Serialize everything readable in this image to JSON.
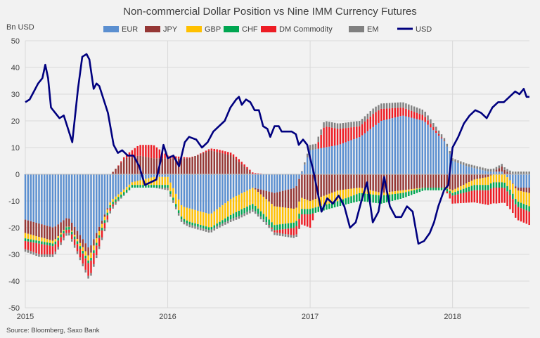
{
  "chart_data": {
    "type": "bar",
    "subtype": "stacked bar with line overlay",
    "title": "Non-commercial Dollar Position vs Nine IMM Currency Futures",
    "ylabel": "Bn USD",
    "ylim": [
      -50,
      50
    ],
    "yticks": [
      -50,
      -40,
      -30,
      -20,
      -10,
      0,
      10,
      20,
      30,
      40,
      50
    ],
    "x_start": 2015.0,
    "x_end": 2018.54,
    "xticks": [
      {
        "value": 2015,
        "label": "2015"
      },
      {
        "value": 2016,
        "label": "2016"
      },
      {
        "value": 2017,
        "label": "2017"
      },
      {
        "value": 2018,
        "label": "2018"
      }
    ],
    "source": "Source: Bloomberg, Saxo Bank",
    "weeks_estimated_from_keypoints": true,
    "series": [
      {
        "name": "EUR",
        "color": "#5b8fd0",
        "kind": "bar",
        "keypoints": [
          [
            2015.0,
            -17
          ],
          [
            2015.2,
            -20
          ],
          [
            2015.3,
            -16
          ],
          [
            2015.45,
            -28
          ],
          [
            2015.6,
            -10
          ],
          [
            2015.75,
            -3
          ],
          [
            2015.9,
            -1
          ],
          [
            2016.0,
            -1
          ],
          [
            2016.1,
            -12
          ],
          [
            2016.3,
            -15
          ],
          [
            2016.45,
            -9
          ],
          [
            2016.6,
            -5
          ],
          [
            2016.75,
            -7
          ],
          [
            2016.9,
            -5
          ],
          [
            2017.0,
            9
          ],
          [
            2017.2,
            11
          ],
          [
            2017.35,
            14
          ],
          [
            2017.5,
            20
          ],
          [
            2017.65,
            22
          ],
          [
            2017.8,
            20
          ],
          [
            2017.95,
            12
          ],
          [
            2018.0,
            5
          ],
          [
            2018.1,
            3
          ],
          [
            2018.25,
            1
          ],
          [
            2018.35,
            1
          ],
          [
            2018.45,
            -5
          ],
          [
            2018.54,
            -5
          ]
        ]
      },
      {
        "name": "JPY",
        "color": "#953735",
        "kind": "bar",
        "keypoints": [
          [
            2015.0,
            -5
          ],
          [
            2015.2,
            -5
          ],
          [
            2015.3,
            -3
          ],
          [
            2015.45,
            -3
          ],
          [
            2015.6,
            0
          ],
          [
            2015.7,
            6
          ],
          [
            2015.8,
            7
          ],
          [
            2015.9,
            6
          ],
          [
            2016.0,
            6
          ],
          [
            2016.15,
            6
          ],
          [
            2016.3,
            9
          ],
          [
            2016.45,
            7
          ],
          [
            2016.6,
            0
          ],
          [
            2016.75,
            -5
          ],
          [
            2016.9,
            -8
          ],
          [
            2017.0,
            -10
          ],
          [
            2017.2,
            -6
          ],
          [
            2017.35,
            -5
          ],
          [
            2017.5,
            -7
          ],
          [
            2017.65,
            -6
          ],
          [
            2017.8,
            -5
          ],
          [
            2017.95,
            -5
          ],
          [
            2018.0,
            -6
          ],
          [
            2018.15,
            -2
          ],
          [
            2018.25,
            -1
          ],
          [
            2018.35,
            2
          ],
          [
            2018.45,
            -1
          ],
          [
            2018.54,
            -2
          ]
        ]
      },
      {
        "name": "GBP",
        "color": "#ffc000",
        "kind": "bar",
        "keypoints": [
          [
            2015.0,
            -2
          ],
          [
            2015.2,
            -1
          ],
          [
            2015.3,
            0
          ],
          [
            2015.45,
            -2
          ],
          [
            2015.6,
            -1
          ],
          [
            2015.75,
            -1
          ],
          [
            2015.9,
            -3
          ],
          [
            2016.0,
            -3
          ],
          [
            2016.15,
            -5
          ],
          [
            2016.3,
            -5
          ],
          [
            2016.45,
            -6
          ],
          [
            2016.6,
            -6
          ],
          [
            2016.75,
            -7
          ],
          [
            2016.9,
            -5
          ],
          [
            2017.0,
            -3
          ],
          [
            2017.2,
            -4
          ],
          [
            2017.35,
            -2
          ],
          [
            2017.5,
            -1
          ],
          [
            2017.65,
            -1
          ],
          [
            2017.8,
            0
          ],
          [
            2017.95,
            0
          ],
          [
            2018.0,
            -1
          ],
          [
            2018.15,
            -2
          ],
          [
            2018.25,
            -3
          ],
          [
            2018.35,
            -3
          ],
          [
            2018.45,
            -4
          ],
          [
            2018.54,
            -5
          ]
        ]
      },
      {
        "name": "CHF",
        "color": "#00a651",
        "kind": "bar",
        "keypoints": [
          [
            2015.0,
            -1
          ],
          [
            2015.2,
            -1
          ],
          [
            2015.3,
            -1
          ],
          [
            2015.45,
            -1
          ],
          [
            2015.6,
            -1
          ],
          [
            2015.75,
            -1
          ],
          [
            2015.9,
            -1
          ],
          [
            2016.0,
            -1
          ],
          [
            2016.2,
            -1
          ],
          [
            2016.35,
            -1
          ],
          [
            2016.5,
            -2
          ],
          [
            2016.7,
            -2
          ],
          [
            2016.9,
            -2
          ],
          [
            2017.0,
            -2
          ],
          [
            2017.2,
            -2
          ],
          [
            2017.35,
            -3
          ],
          [
            2017.5,
            -3
          ],
          [
            2017.65,
            -2
          ],
          [
            2017.8,
            -1
          ],
          [
            2017.95,
            -1
          ],
          [
            2018.0,
            -1
          ],
          [
            2018.15,
            -2
          ],
          [
            2018.3,
            -2
          ],
          [
            2018.45,
            -2
          ],
          [
            2018.54,
            -2
          ]
        ]
      },
      {
        "name": "DM Commodity",
        "color": "#ed1c24",
        "kind": "bar",
        "keypoints": [
          [
            2015.0,
            -3
          ],
          [
            2015.1,
            -4
          ],
          [
            2015.2,
            -3
          ],
          [
            2015.3,
            -1
          ],
          [
            2015.45,
            -5
          ],
          [
            2015.6,
            -1
          ],
          [
            2015.7,
            1
          ],
          [
            2015.8,
            4
          ],
          [
            2015.9,
            5
          ],
          [
            2016.0,
            1
          ],
          [
            2016.2,
            0
          ],
          [
            2016.35,
            1
          ],
          [
            2016.5,
            1
          ],
          [
            2016.7,
            0
          ],
          [
            2016.9,
            -3
          ],
          [
            2017.0,
            -5
          ],
          [
            2017.1,
            8
          ],
          [
            2017.2,
            6
          ],
          [
            2017.35,
            4
          ],
          [
            2017.45,
            5
          ],
          [
            2017.55,
            4
          ],
          [
            2017.65,
            3
          ],
          [
            2017.8,
            2
          ],
          [
            2017.95,
            0
          ],
          [
            2018.0,
            -3
          ],
          [
            2018.1,
            -4
          ],
          [
            2018.2,
            -5
          ],
          [
            2018.3,
            -6
          ],
          [
            2018.45,
            -5
          ],
          [
            2018.54,
            -5
          ]
        ]
      },
      {
        "name": "EM",
        "color": "#808080",
        "kind": "bar",
        "keypoints": [
          [
            2015.0,
            -1
          ],
          [
            2015.2,
            -1
          ],
          [
            2015.3,
            -1
          ],
          [
            2015.45,
            -1
          ],
          [
            2015.6,
            -1
          ],
          [
            2015.75,
            0
          ],
          [
            2015.9,
            0
          ],
          [
            2016.0,
            -1
          ],
          [
            2016.2,
            -1
          ],
          [
            2016.4,
            -1
          ],
          [
            2016.6,
            -1
          ],
          [
            2016.75,
            -1
          ],
          [
            2016.9,
            -1
          ],
          [
            2017.0,
            2
          ],
          [
            2017.2,
            2
          ],
          [
            2017.35,
            2
          ],
          [
            2017.5,
            2
          ],
          [
            2017.65,
            2
          ],
          [
            2017.8,
            2
          ],
          [
            2017.95,
            1
          ],
          [
            2018.0,
            1
          ],
          [
            2018.2,
            1
          ],
          [
            2018.35,
            1
          ],
          [
            2018.5,
            1
          ],
          [
            2018.54,
            1
          ]
        ]
      },
      {
        "name": "USD",
        "color": "#00007f",
        "kind": "line",
        "points": [
          [
            2015.0,
            27
          ],
          [
            2015.03,
            28
          ],
          [
            2015.06,
            31
          ],
          [
            2015.09,
            34
          ],
          [
            2015.12,
            36
          ],
          [
            2015.14,
            41
          ],
          [
            2015.16,
            36
          ],
          [
            2015.18,
            25
          ],
          [
            2015.21,
            23
          ],
          [
            2015.24,
            21
          ],
          [
            2015.27,
            22
          ],
          [
            2015.3,
            17
          ],
          [
            2015.33,
            12
          ],
          [
            2015.37,
            32
          ],
          [
            2015.4,
            44
          ],
          [
            2015.43,
            45
          ],
          [
            2015.45,
            43
          ],
          [
            2015.48,
            32
          ],
          [
            2015.5,
            34
          ],
          [
            2015.52,
            33
          ],
          [
            2015.55,
            28
          ],
          [
            2015.58,
            23
          ],
          [
            2015.62,
            11
          ],
          [
            2015.65,
            8
          ],
          [
            2015.68,
            9
          ],
          [
            2015.72,
            7
          ],
          [
            2015.76,
            7
          ],
          [
            2015.8,
            3
          ],
          [
            2015.84,
            -4
          ],
          [
            2015.88,
            -3
          ],
          [
            2015.92,
            -2
          ],
          [
            2015.95,
            5
          ],
          [
            2015.97,
            11
          ],
          [
            2016.0,
            6
          ],
          [
            2016.04,
            7
          ],
          [
            2016.08,
            3
          ],
          [
            2016.12,
            12
          ],
          [
            2016.15,
            14
          ],
          [
            2016.2,
            13
          ],
          [
            2016.24,
            10
          ],
          [
            2016.28,
            12
          ],
          [
            2016.32,
            16
          ],
          [
            2016.36,
            18
          ],
          [
            2016.4,
            20
          ],
          [
            2016.44,
            25
          ],
          [
            2016.48,
            28
          ],
          [
            2016.5,
            29
          ],
          [
            2016.52,
            26
          ],
          [
            2016.55,
            28
          ],
          [
            2016.58,
            27
          ],
          [
            2016.61,
            24
          ],
          [
            2016.64,
            24
          ],
          [
            2016.67,
            18
          ],
          [
            2016.7,
            17
          ],
          [
            2016.72,
            14
          ],
          [
            2016.75,
            18
          ],
          [
            2016.78,
            18
          ],
          [
            2016.8,
            16
          ],
          [
            2016.84,
            16
          ],
          [
            2016.87,
            16
          ],
          [
            2016.9,
            15
          ],
          [
            2016.92,
            11
          ],
          [
            2016.95,
            13
          ],
          [
            2016.98,
            11
          ],
          [
            2017.0,
            6
          ],
          [
            2017.02,
            2
          ],
          [
            2017.05,
            -6
          ],
          [
            2017.08,
            -14
          ],
          [
            2017.12,
            -9
          ],
          [
            2017.16,
            -11
          ],
          [
            2017.2,
            -8
          ],
          [
            2017.24,
            -12
          ],
          [
            2017.28,
            -20
          ],
          [
            2017.32,
            -18
          ],
          [
            2017.36,
            -10
          ],
          [
            2017.4,
            -3
          ],
          [
            2017.44,
            -18
          ],
          [
            2017.48,
            -14
          ],
          [
            2017.52,
            -1
          ],
          [
            2017.56,
            -12
          ],
          [
            2017.6,
            -16
          ],
          [
            2017.64,
            -16
          ],
          [
            2017.68,
            -12
          ],
          [
            2017.72,
            -14
          ],
          [
            2017.76,
            -26
          ],
          [
            2017.8,
            -25
          ],
          [
            2017.84,
            -22
          ],
          [
            2017.87,
            -18
          ],
          [
            2017.9,
            -12
          ],
          [
            2017.94,
            -6
          ],
          [
            2017.97,
            -4
          ],
          [
            2018.0,
            10
          ],
          [
            2018.04,
            14
          ],
          [
            2018.08,
            19
          ],
          [
            2018.12,
            22
          ],
          [
            2018.16,
            24
          ],
          [
            2018.2,
            23
          ],
          [
            2018.24,
            21
          ],
          [
            2018.28,
            25
          ],
          [
            2018.32,
            27
          ],
          [
            2018.36,
            27
          ],
          [
            2018.4,
            29
          ],
          [
            2018.44,
            31
          ],
          [
            2018.47,
            30
          ],
          [
            2018.5,
            32
          ],
          [
            2018.52,
            29
          ],
          [
            2018.54,
            29
          ]
        ]
      }
    ]
  }
}
